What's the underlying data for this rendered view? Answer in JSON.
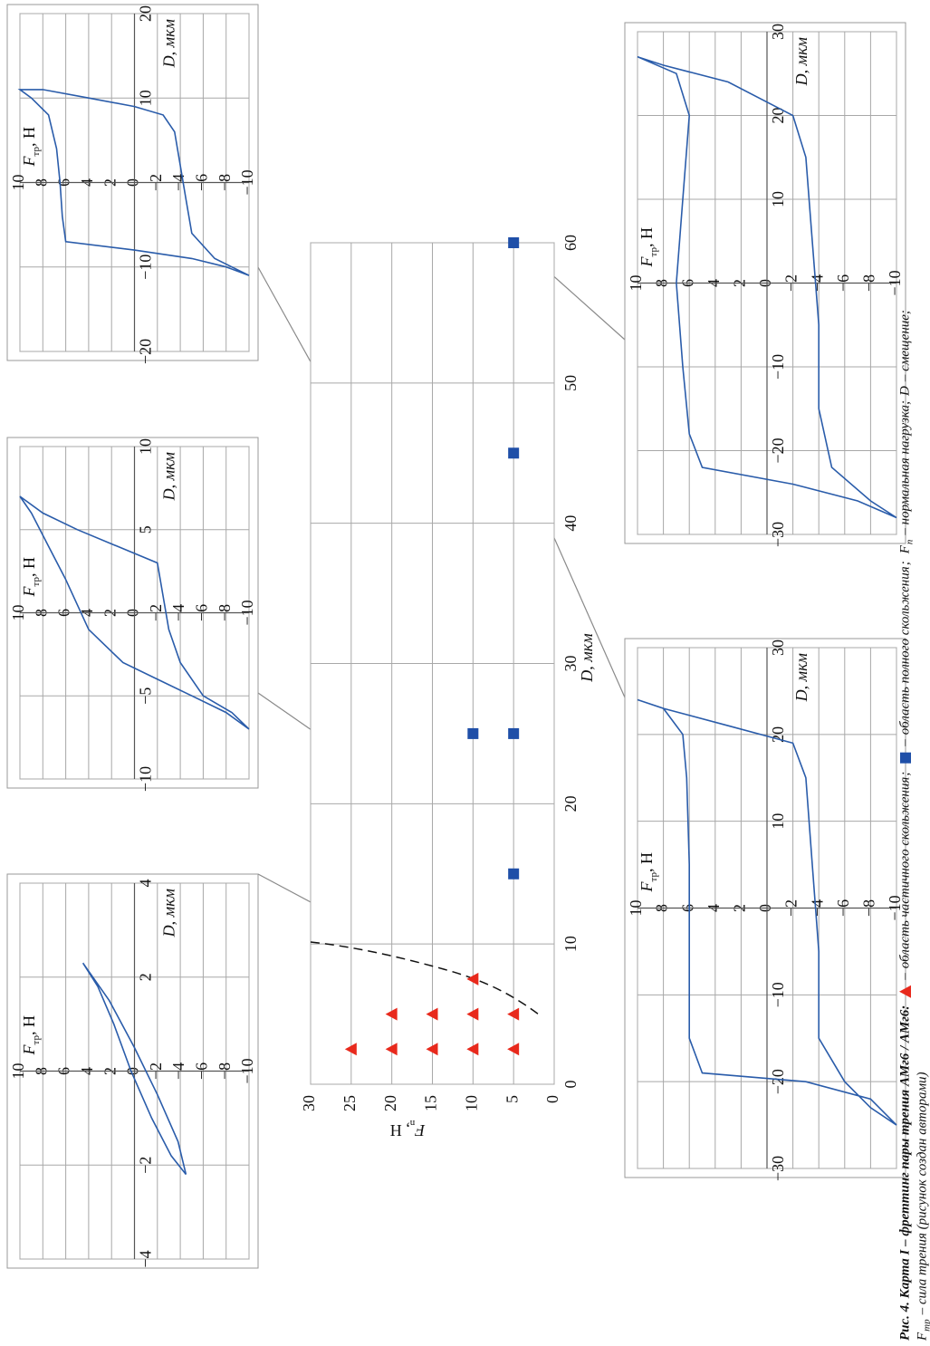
{
  "chart_data": [
    {
      "type": "scatter",
      "xlabel": "D, мкм",
      "ylabel": {
        "main": "F",
        "sub": "n",
        "rest": ", Н"
      },
      "xlim": [
        0,
        60
      ],
      "xticks": [
        0,
        10,
        20,
        30,
        40,
        50,
        60
      ],
      "ylim": [
        0,
        30
      ],
      "yticks": [
        0,
        5,
        10,
        15,
        20,
        25,
        30
      ],
      "grid": true,
      "series": [
        {
          "name": "область частичного скольжения",
          "color": "#e8291c",
          "marker": "triangle",
          "x": [
            2.5,
            2.5,
            2.5,
            2.5,
            2.5,
            5,
            5,
            5,
            5,
            7.5
          ],
          "values": [
            5,
            10,
            15,
            20,
            25,
            5,
            10,
            15,
            20,
            10
          ]
        },
        {
          "name": "область полного скольжения",
          "color": "#1f4fa8",
          "marker": "square",
          "x": [
            15,
            25,
            25,
            45,
            60
          ],
          "values": [
            5,
            5,
            10,
            5,
            5
          ]
        }
      ]
    },
    {
      "type": "line",
      "xlabel": "D, мкм",
      "ylabel": {
        "main": "F",
        "sub": "тр",
        "rest": ", Н"
      },
      "xlim": [
        -4,
        4
      ],
      "xticks": [
        {
          "value": -4,
          "label": "−4"
        },
        {
          "value": -2,
          "label": "−2"
        },
        2,
        4
      ],
      "ylim": [
        -10,
        10
      ],
      "yticks": [
        10,
        8,
        6,
        4,
        2,
        0,
        {
          "value": -2,
          "label": "−2"
        },
        {
          "value": -4,
          "label": "−4"
        },
        {
          "value": -6,
          "label": "−6"
        },
        {
          "value": -8,
          "label": "−8"
        },
        {
          "value": -10,
          "label": "−10"
        }
      ],
      "x": [
        -2.2,
        -1.5,
        -0.5,
        0.5,
        1.5,
        2.3,
        1.8,
        1,
        0,
        -1,
        -1.8,
        -2.2
      ],
      "series": [
        {
          "color": "#2a5caa",
          "values": [
            -4.5,
            -3.8,
            -2,
            0,
            2.2,
            4.5,
            3.2,
            1.8,
            0.3,
            -1.5,
            -3.2,
            -4.5
          ]
        }
      ]
    },
    {
      "type": "line",
      "xlabel": "D, мкм",
      "ylabel": {
        "main": "F",
        "sub": "тр",
        "rest": ", Н"
      },
      "xlim": [
        -10,
        10
      ],
      "xticks": [
        {
          "value": -10,
          "label": "−10"
        },
        {
          "value": -5,
          "label": "−5"
        },
        5,
        10
      ],
      "ylim": [
        -10,
        10
      ],
      "yticks": [
        10,
        8,
        6,
        4,
        2,
        0,
        {
          "value": -2,
          "label": "−2"
        },
        {
          "value": -4,
          "label": "−4"
        },
        {
          "value": -6,
          "label": "−6"
        },
        {
          "value": -8,
          "label": "−8"
        },
        {
          "value": -10,
          "label": "−10"
        }
      ],
      "x": [
        -7,
        -6,
        -5,
        -4,
        -3,
        -1,
        2,
        4,
        6,
        7,
        6,
        5,
        3,
        1,
        -1,
        -3,
        -5,
        -6,
        -7
      ],
      "series": [
        {
          "color": "#2a5caa",
          "values": [
            -10,
            -8,
            -5,
            -2,
            1,
            4,
            6,
            7.5,
            9,
            10,
            8,
            5,
            -2,
            -2.5,
            -3,
            -4,
            -6,
            -8.5,
            -10
          ]
        }
      ]
    },
    {
      "type": "line",
      "xlabel": "D, мкм",
      "ylabel": {
        "main": "F",
        "sub": "тр",
        "rest": ", Н"
      },
      "xlim": [
        -20,
        20
      ],
      "xticks": [
        {
          "value": -20,
          "label": "−20"
        },
        {
          "value": -10,
          "label": "−10"
        },
        10,
        20
      ],
      "ylim": [
        -10,
        10
      ],
      "yticks": [
        10,
        8,
        6,
        4,
        2,
        0,
        {
          "value": -2,
          "label": "−2"
        },
        {
          "value": -4,
          "label": "−4"
        },
        {
          "value": -6,
          "label": "−6"
        },
        {
          "value": -8,
          "label": "−8"
        },
        {
          "value": -10,
          "label": "−10"
        }
      ],
      "x": [
        -11,
        -10,
        -9,
        -8,
        -7,
        -4,
        0,
        4,
        8,
        10,
        11,
        11,
        10,
        9,
        8,
        6,
        2,
        -2,
        -6,
        -9,
        -11
      ],
      "series": [
        {
          "color": "#2a5caa",
          "values": [
            -10,
            -8,
            -5,
            0,
            6,
            6.3,
            6.5,
            6.8,
            7.5,
            9,
            10,
            8,
            4,
            0,
            -2.5,
            -3.5,
            -4,
            -4.5,
            -5,
            -7,
            -10
          ]
        }
      ]
    },
    {
      "type": "line",
      "xlabel": "D, мкм",
      "ylabel": {
        "main": "F",
        "sub": "тр",
        "rest": ", Н"
      },
      "xlim": [
        -30,
        30
      ],
      "xticks": [
        {
          "value": -30,
          "label": "−30"
        },
        {
          "value": -20,
          "label": "−20"
        },
        {
          "value": -10,
          "label": "−10"
        },
        10,
        20,
        30
      ],
      "ylim": [
        -10,
        10
      ],
      "yticks": [
        10,
        8,
        6,
        4,
        2,
        0,
        {
          "value": -2,
          "label": "−2"
        },
        {
          "value": -4,
          "label": "−4"
        },
        {
          "value": -6,
          "label": "−6"
        },
        {
          "value": -8,
          "label": "−8"
        },
        {
          "value": -10,
          "label": "−10"
        }
      ],
      "x": [
        -25,
        -22,
        -20,
        -19,
        -15,
        -5,
        5,
        15,
        20,
        23,
        24,
        23,
        21,
        19,
        15,
        5,
        -5,
        -15,
        -20,
        -23,
        -25
      ],
      "series": [
        {
          "color": "#2a5caa",
          "values": [
            -10,
            -8,
            -3,
            5,
            6,
            6,
            6,
            6.2,
            6.5,
            8,
            10,
            8,
            3,
            -2,
            -3,
            -3.5,
            -4,
            -4,
            -6,
            -8,
            -10
          ]
        }
      ]
    },
    {
      "type": "line",
      "xlabel": "D, мкм",
      "ylabel": {
        "main": "F",
        "sub": "тр",
        "rest": ", Н"
      },
      "xlim": [
        -30,
        30
      ],
      "xticks": [
        {
          "value": -30,
          "label": "−30"
        },
        {
          "value": -20,
          "label": "−20"
        },
        {
          "value": -10,
          "label": "−10"
        },
        10,
        20,
        30
      ],
      "ylim": [
        -10,
        10
      ],
      "yticks": [
        10,
        8,
        6,
        4,
        2,
        0,
        {
          "value": -2,
          "label": "−2"
        },
        {
          "value": -4,
          "label": "−4"
        },
        {
          "value": -6,
          "label": "−6"
        },
        {
          "value": -8,
          "label": "−8"
        },
        {
          "value": -10,
          "label": "−10"
        }
      ],
      "x": [
        -28,
        -26,
        -24,
        -22,
        -18,
        -10,
        0,
        10,
        20,
        25,
        27,
        26,
        24,
        20,
        15,
        5,
        -5,
        -15,
        -22,
        -26,
        -28
      ],
      "series": [
        {
          "color": "#2a5caa",
          "values": [
            -10,
            -7,
            -2,
            5,
            6,
            6.5,
            7,
            6.5,
            6,
            7,
            10,
            8,
            3,
            -2,
            -3,
            -3.5,
            -4,
            -4,
            -5,
            -8,
            -10
          ]
        }
      ]
    }
  ],
  "caption": {
    "lead": "Рис. 4. Карта I – фреттинг пары трения АМг6 / АМг6:",
    "dash": "–",
    "semicolon": ";",
    "tail": [
      [
        {
          "text": "F"
        },
        {
          "text": "n",
          "sub": true
        },
        {
          "text": "– нормальная нагрузка;"
        },
        {
          "text": "D"
        },
        {
          "text": "– смещение;"
        }
      ],
      [
        {
          "text": "F"
        },
        {
          "text": "тр",
          "sub": true
        },
        {
          "text": "– сила трения (рисунок создан авторами)"
        }
      ]
    ]
  }
}
